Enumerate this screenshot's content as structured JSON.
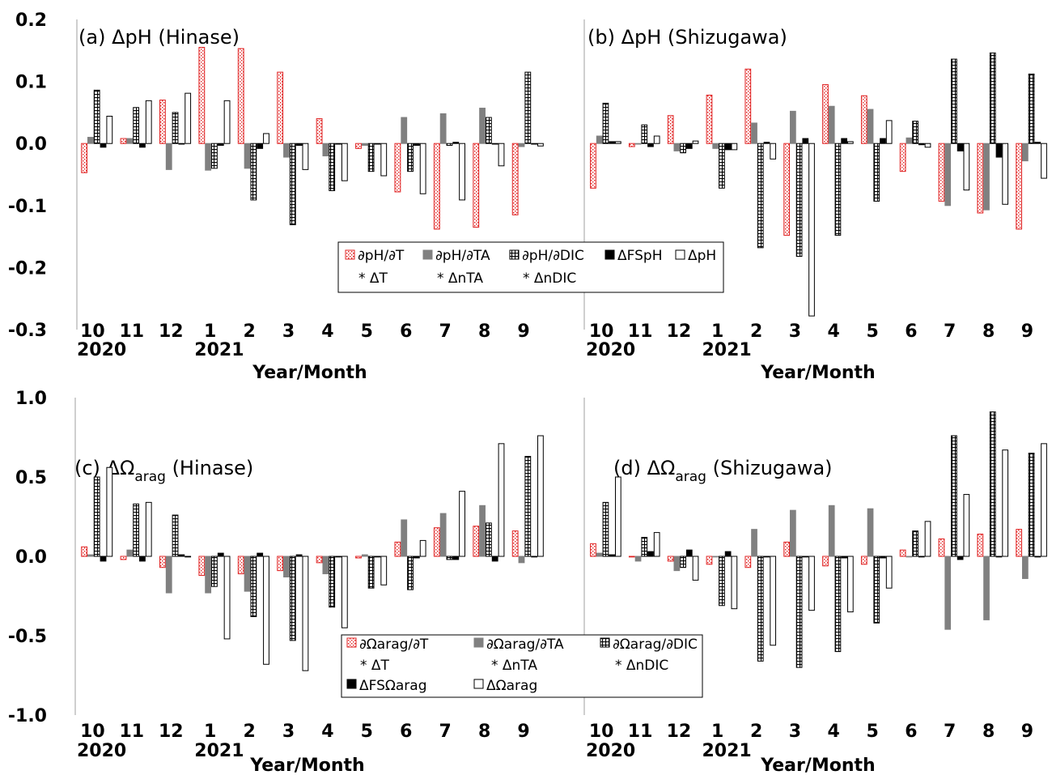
{
  "colors": {
    "temperature": "#e02020",
    "alkalinity": "#808080",
    "dic": "#000000",
    "freshwater": "#000000",
    "total": "#000000"
  },
  "months": [
    "10",
    "11",
    "12",
    "1",
    "2",
    "3",
    "4",
    "5",
    "6",
    "7",
    "8",
    "9"
  ],
  "year_labels": [
    {
      "index": 0,
      "text": "2020"
    },
    {
      "index": 3,
      "text": "2021"
    }
  ],
  "xlabel": "Year/Month",
  "chart_data": [
    {
      "type": "bar",
      "title": "(a) ΔpH (Hinase)",
      "ylim": [
        -0.3,
        0.2
      ],
      "yticks": [
        "-0.3",
        "-0.2",
        "-0.1",
        "0.0",
        "0.1",
        "0.2"
      ],
      "categories": [
        "10",
        "11",
        "12",
        "1",
        "2",
        "3",
        "4",
        "5",
        "6",
        "7",
        "8",
        "9"
      ],
      "series": [
        {
          "name": "∂pH/∂T",
          "values": [
            -0.047,
            0.008,
            0.07,
            0.155,
            0.153,
            0.115,
            0.04,
            -0.008,
            -0.078,
            -0.138,
            -0.135,
            -0.115
          ]
        },
        {
          "name": "∂pH/∂TA",
          "values": [
            0.01,
            0.008,
            -0.042,
            -0.043,
            -0.04,
            -0.022,
            -0.02,
            -0.003,
            0.042,
            0.048,
            0.057,
            -0.005
          ]
        },
        {
          "name": "∂pH/∂DIC",
          "values": [
            0.086,
            0.058,
            0.05,
            -0.04,
            -0.091,
            -0.131,
            -0.076,
            -0.045,
            -0.045,
            -0.003,
            0.042,
            0.115
          ]
        },
        {
          "name": "ΔFSpH",
          "values": [
            -0.006,
            -0.006,
            0.0,
            -0.003,
            -0.008,
            -0.003,
            0.0,
            0.0,
            -0.003,
            0.002,
            0.0,
            0.0
          ]
        },
        {
          "name": "ΔpH",
          "values": [
            0.044,
            0.069,
            0.081,
            0.069,
            0.016,
            -0.042,
            -0.06,
            -0.052,
            -0.081,
            -0.091,
            -0.036,
            -0.004
          ]
        }
      ],
      "legend": {
        "entries": [
          "∂pH/∂T",
          "∂pH/∂TA",
          "∂pH/∂DIC",
          "ΔFSpH",
          "ΔpH"
        ],
        "notes": [
          "* ΔT",
          "* ΔnTA",
          "* ΔnDIC"
        ]
      }
    },
    {
      "type": "bar",
      "title": "(b) ΔpH (Shizugawa)",
      "ylim": [
        -0.3,
        0.2
      ],
      "categories": [
        "10",
        "11",
        "12",
        "1",
        "2",
        "3",
        "4",
        "5",
        "6",
        "7",
        "8",
        "9"
      ],
      "series": [
        {
          "name": "∂pH/∂T",
          "values": [
            -0.072,
            -0.005,
            0.045,
            0.078,
            0.12,
            -0.148,
            0.095,
            0.077,
            -0.045,
            -0.093,
            -0.112,
            -0.138
          ]
        },
        {
          "name": "∂pH/∂TA",
          "values": [
            0.012,
            0.0,
            -0.012,
            -0.008,
            0.033,
            0.052,
            0.06,
            0.055,
            0.009,
            -0.1,
            -0.107,
            -0.028
          ]
        },
        {
          "name": "∂pH/∂DIC",
          "values": [
            0.065,
            0.03,
            -0.015,
            -0.072,
            -0.168,
            -0.182,
            -0.148,
            -0.093,
            0.036,
            0.136,
            0.146,
            0.112
          ]
        },
        {
          "name": "ΔFSpH",
          "values": [
            0.003,
            -0.005,
            -0.008,
            -0.01,
            0.002,
            0.008,
            0.008,
            0.008,
            -0.002,
            -0.012,
            -0.022,
            0.002
          ]
        },
        {
          "name": "ΔpH",
          "values": [
            0.003,
            0.012,
            0.004,
            -0.01,
            -0.025,
            -0.278,
            0.003,
            0.037,
            -0.006,
            -0.075,
            -0.098,
            -0.056
          ]
        }
      ]
    },
    {
      "type": "bar",
      "title": "(c) ΔΩarag (Hinase)",
      "title_main": "(c) ΔΩ",
      "title_sub": "arag",
      "title_tail": " (Hinase)",
      "ylim": [
        -1.0,
        1.0
      ],
      "yticks": [
        "-1.0",
        "-0.5",
        "0.0",
        "0.5",
        "1.0"
      ],
      "categories": [
        "10",
        "11",
        "12",
        "1",
        "2",
        "3",
        "4",
        "5",
        "6",
        "7",
        "8",
        "9"
      ],
      "series": [
        {
          "name": "∂Ωarag/∂T",
          "values": [
            0.06,
            -0.02,
            -0.07,
            -0.12,
            -0.11,
            -0.09,
            -0.04,
            -0.01,
            0.09,
            0.18,
            0.19,
            0.16
          ]
        },
        {
          "name": "∂Ωarag/∂TA",
          "values": [
            0.01,
            0.04,
            -0.23,
            -0.23,
            -0.22,
            -0.13,
            -0.11,
            0.01,
            0.23,
            0.27,
            0.32,
            -0.04
          ]
        },
        {
          "name": "∂Ωarag/∂DIC",
          "values": [
            0.5,
            0.33,
            0.26,
            -0.19,
            -0.38,
            -0.53,
            -0.32,
            -0.2,
            -0.21,
            -0.02,
            0.21,
            0.63
          ]
        },
        {
          "name": "ΔFSΩarag",
          "values": [
            -0.03,
            -0.03,
            0.01,
            0.02,
            0.02,
            0.01,
            0.0,
            0.0,
            -0.01,
            -0.02,
            -0.03,
            0.0
          ]
        },
        {
          "name": "ΔΩarag",
          "values": [
            0.56,
            0.34,
            0.0,
            -0.52,
            -0.68,
            -0.72,
            -0.45,
            -0.18,
            0.1,
            0.41,
            0.71,
            0.76
          ]
        }
      ],
      "legend": {
        "entries": [
          "∂Ωarag/∂T",
          "∂Ωarag/∂TA",
          "∂Ωarag/∂DIC",
          "ΔFSΩarag",
          "ΔΩarag"
        ],
        "notes": [
          "* ΔT",
          "* ΔnTA",
          "* ΔnDIC"
        ]
      }
    },
    {
      "type": "bar",
      "title": "(d) ΔΩarag (Shizugawa)",
      "title_main": "(d) ΔΩ",
      "title_sub": "arag",
      "title_tail": " (Shizugawa)",
      "ylim": [
        -1.0,
        1.0
      ],
      "categories": [
        "10",
        "11",
        "12",
        "1",
        "2",
        "3",
        "4",
        "5",
        "6",
        "7",
        "8",
        "9"
      ],
      "series": [
        {
          "name": "∂Ωarag/∂T",
          "values": [
            0.08,
            0.0,
            -0.03,
            -0.05,
            -0.07,
            0.09,
            -0.06,
            -0.05,
            0.04,
            0.11,
            0.14,
            0.17
          ]
        },
        {
          "name": "∂Ωarag/∂TA",
          "values": [
            0.02,
            -0.03,
            -0.09,
            0.0,
            0.17,
            0.29,
            0.32,
            0.3,
            0.0,
            -0.46,
            -0.4,
            -0.14
          ]
        },
        {
          "name": "∂Ωarag/∂DIC",
          "values": [
            0.34,
            0.12,
            -0.07,
            -0.31,
            -0.66,
            -0.7,
            -0.6,
            -0.42,
            0.16,
            0.76,
            0.91,
            0.65
          ]
        },
        {
          "name": "ΔFSΩarag",
          "values": [
            0.01,
            0.03,
            0.04,
            0.03,
            0.0,
            0.0,
            -0.01,
            -0.01,
            0.0,
            -0.02,
            0.0,
            0.0
          ]
        },
        {
          "name": "ΔΩarag",
          "values": [
            0.5,
            0.15,
            -0.15,
            -0.33,
            -0.56,
            -0.34,
            -0.35,
            -0.2,
            0.22,
            0.39,
            0.67,
            0.71
          ]
        }
      ]
    }
  ]
}
